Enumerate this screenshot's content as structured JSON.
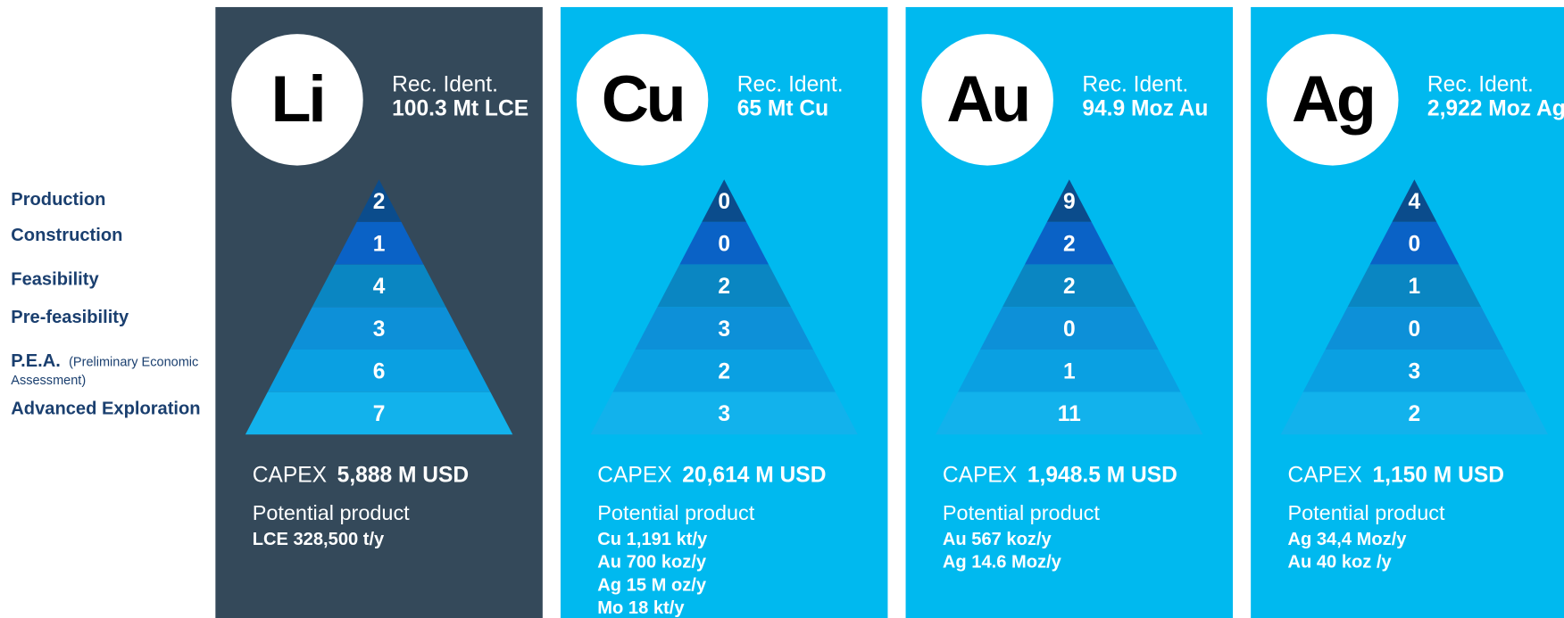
{
  "stages": [
    "Production",
    "Construction",
    "Feasibility",
    "Pre-feasibility",
    "P.E.A.",
    "Advanced Exploration"
  ],
  "pea_note": [
    "(Preliminary Economic",
    "Assessment)"
  ],
  "cards": [
    {
      "symbol": "Li",
      "rec_label": "Rec. Ident.",
      "resource": "100.3 Mt LCE",
      "counts": [
        2,
        1,
        4,
        3,
        6,
        7
      ],
      "capex_label": "CAPEX",
      "capex": "5,888 M USD",
      "product_label": "Potential product",
      "products": [
        "LCE 328,500 t/y"
      ]
    },
    {
      "symbol": "Cu",
      "rec_label": "Rec. Ident.",
      "resource": "65 Mt Cu",
      "counts": [
        0,
        0,
        2,
        3,
        2,
        3
      ],
      "capex_label": "CAPEX",
      "capex": "20,614 M USD",
      "product_label": "Potential product",
      "products": [
        "Cu 1,191 kt/y",
        "Au 700 koz/y",
        "Ag 15 M oz/y",
        "Mo 18 kt/y"
      ]
    },
    {
      "symbol": "Au",
      "rec_label": "Rec. Ident.",
      "resource": "94.9 Moz Au",
      "counts": [
        9,
        2,
        2,
        0,
        1,
        11
      ],
      "capex_label": "CAPEX",
      "capex": "1,948.5 M USD",
      "product_label": "Potential product",
      "products": [
        "Au 567 koz/y",
        "Ag 14.6 Moz/y"
      ]
    },
    {
      "symbol": "Ag",
      "rec_label": "Rec. Ident.",
      "resource": "2,922 Moz Ag",
      "counts": [
        4,
        0,
        1,
        0,
        3,
        2
      ],
      "capex_label": "CAPEX",
      "capex": "1,150 M USD",
      "product_label": "Potential product",
      "products": [
        "Ag 34,4 Moz/y",
        "Au 40 koz /y"
      ]
    }
  ]
}
